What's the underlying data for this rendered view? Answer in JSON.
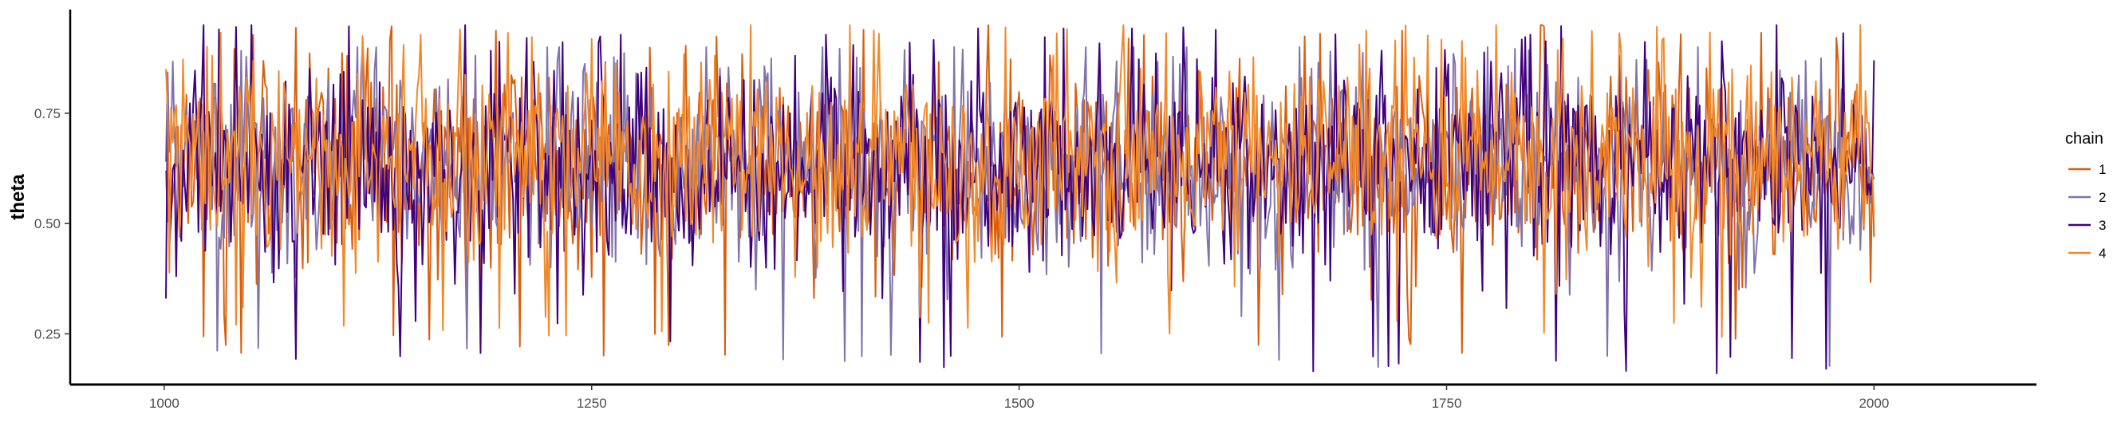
{
  "chart_data": {
    "type": "line",
    "title": "",
    "xlabel": "",
    "ylabel": "theta",
    "xlim": [
      945,
      2095
    ],
    "ylim": [
      0.135,
      0.985
    ],
    "x_range": [
      1001,
      2000
    ],
    "x_ticks": [
      1000,
      1250,
      1500,
      1750,
      2000
    ],
    "x_tick_labels": [
      "1000",
      "1250",
      "1500",
      "1750",
      "2000"
    ],
    "y_ticks": [
      0.25,
      0.5,
      0.75
    ],
    "y_tick_labels": [
      "0.25",
      "0.50",
      "0.75"
    ],
    "grid": false,
    "legend": {
      "title": "chain",
      "position": "right"
    },
    "series": [
      {
        "name": "1",
        "color": "#d95f0e",
        "mean": 0.635,
        "sd": 0.115,
        "min": 0.2,
        "max": 0.95,
        "start": 0.62,
        "end": 0.47,
        "seed": 11
      },
      {
        "name": "2",
        "color": "#8073ac",
        "mean": 0.625,
        "sd": 0.11,
        "min": 0.17,
        "max": 0.9,
        "start": 0.64,
        "end": 0.6,
        "seed": 23
      },
      {
        "name": "3",
        "color": "#3f007d",
        "mean": 0.63,
        "sd": 0.12,
        "min": 0.16,
        "max": 0.95,
        "start": 0.33,
        "end": 0.87,
        "seed": 37
      },
      {
        "name": "4",
        "color": "#f1892b",
        "mean": 0.64,
        "sd": 0.115,
        "min": 0.24,
        "max": 0.95,
        "start": 0.85,
        "end": 0.52,
        "seed": 53
      }
    ]
  }
}
